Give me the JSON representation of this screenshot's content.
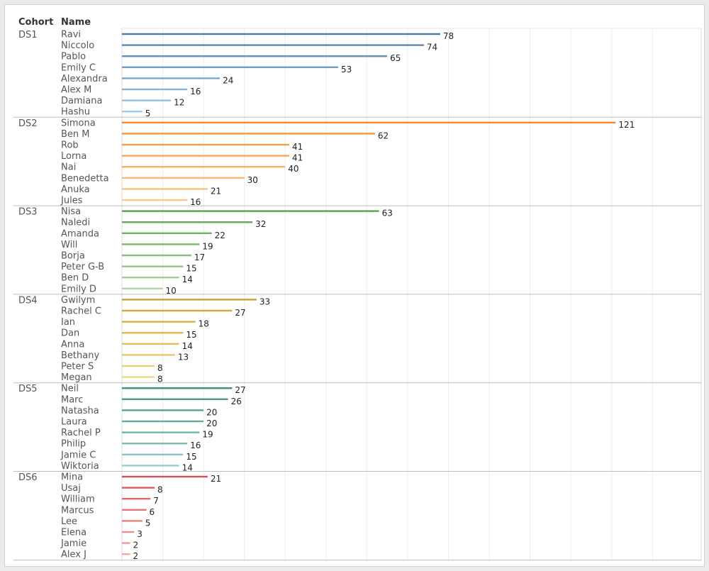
{
  "chart_data": {
    "type": "bar",
    "orientation": "horizontal",
    "headers": {
      "cohort": "Cohort",
      "name": "Name"
    },
    "xlim": [
      0,
      135
    ],
    "grid": true,
    "groups": [
      {
        "cohort": "DS1",
        "color": "#4e79a7",
        "light": "#a0cbe8",
        "rows": [
          {
            "name": "Ravi",
            "value": 78
          },
          {
            "name": "Niccolo",
            "value": 74
          },
          {
            "name": "Pablo",
            "value": 65
          },
          {
            "name": "Emily C",
            "value": 53
          },
          {
            "name": "Alexandra",
            "value": 24
          },
          {
            "name": "Alex M",
            "value": 16
          },
          {
            "name": "Damiana",
            "value": 12
          },
          {
            "name": "Hashu",
            "value": 5
          }
        ]
      },
      {
        "cohort": "DS2",
        "color": "#f28e2b",
        "light": "#ffc68a",
        "rows": [
          {
            "name": "Simona",
            "value": 121
          },
          {
            "name": "Ben M",
            "value": 62
          },
          {
            "name": "Rob",
            "value": 41
          },
          {
            "name": "Lorna",
            "value": 41
          },
          {
            "name": "Nai",
            "value": 40
          },
          {
            "name": "Benedetta",
            "value": 30
          },
          {
            "name": "Anuka",
            "value": 21
          },
          {
            "name": "Jules",
            "value": 16
          }
        ]
      },
      {
        "cohort": "DS3",
        "color": "#59a14f",
        "light": "#a6d99a",
        "rows": [
          {
            "name": "Nisa",
            "value": 63
          },
          {
            "name": "Naledi",
            "value": 32
          },
          {
            "name": "Amanda",
            "value": 22
          },
          {
            "name": "Will",
            "value": 19
          },
          {
            "name": "Borja",
            "value": 17
          },
          {
            "name": "Peter G-B",
            "value": 15
          },
          {
            "name": "Ben D",
            "value": 14
          },
          {
            "name": "Emily D",
            "value": 10
          }
        ]
      },
      {
        "cohort": "DS4",
        "color": "#c9a131",
        "light": "#f1d77e",
        "rows": [
          {
            "name": "Gwilym",
            "value": 33
          },
          {
            "name": "Rachel C",
            "value": 27
          },
          {
            "name": "Ian",
            "value": 18
          },
          {
            "name": "Dan",
            "value": 15
          },
          {
            "name": "Anna",
            "value": 14
          },
          {
            "name": "Bethany",
            "value": 13
          },
          {
            "name": "Peter S",
            "value": 8
          },
          {
            "name": "Megan",
            "value": 8
          }
        ]
      },
      {
        "cohort": "DS5",
        "color": "#3c9180",
        "light": "#9bcccc",
        "rows": [
          {
            "name": "Neil",
            "value": 27
          },
          {
            "name": "Marc",
            "value": 26
          },
          {
            "name": "Natasha",
            "value": 20
          },
          {
            "name": "Laura",
            "value": 20
          },
          {
            "name": "Rachel P",
            "value": 19
          },
          {
            "name": "Philip",
            "value": 16
          },
          {
            "name": "Jamie C",
            "value": 15
          },
          {
            "name": "Wiktoria",
            "value": 14
          }
        ]
      },
      {
        "cohort": "DS6",
        "color": "#d94f4f",
        "light": "#f4a8a0",
        "rows": [
          {
            "name": "Mina",
            "value": 21
          },
          {
            "name": "Usaj",
            "value": 8
          },
          {
            "name": "William",
            "value": 7
          },
          {
            "name": "Marcus",
            "value": 6
          },
          {
            "name": "Lee",
            "value": 5
          },
          {
            "name": "Elena",
            "value": 3
          },
          {
            "name": "Jamie",
            "value": 2
          },
          {
            "name": "Alex J",
            "value": 2
          }
        ]
      }
    ]
  }
}
